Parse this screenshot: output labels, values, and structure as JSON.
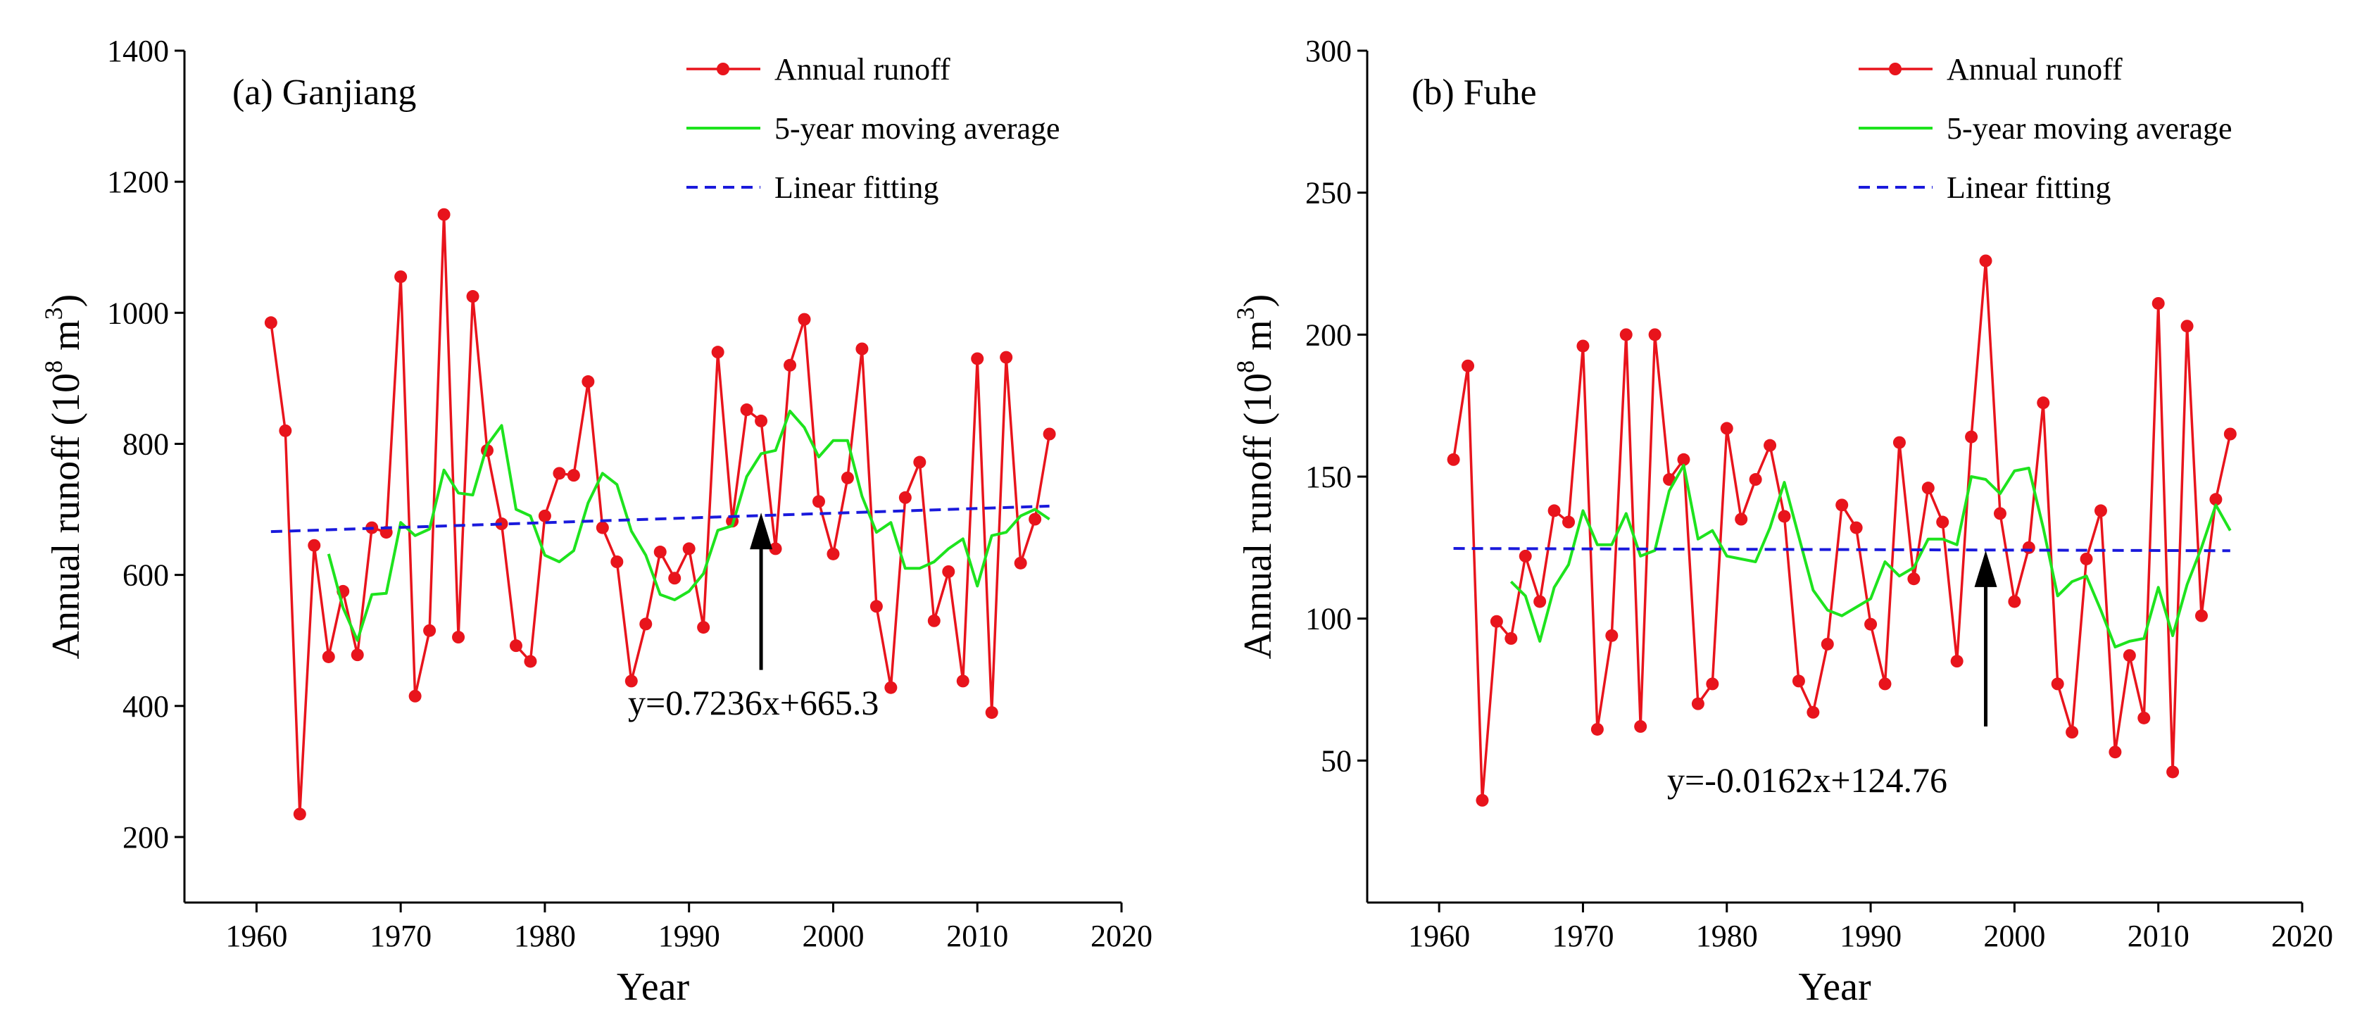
{
  "chart_data": [
    {
      "type": "line",
      "title": "(a) Ganjiang",
      "xlabel": "Year",
      "ylabel_main": "Annual runoff (10",
      "ylabel_sup": "8",
      "ylabel_unit": " m",
      "ylabel_sup2": "3",
      "ylabel_end": ")",
      "xlim": [
        1955,
        2020
      ],
      "ylim": [
        100,
        1400
      ],
      "xticks": [
        1960,
        1970,
        1980,
        1990,
        2000,
        2010,
        2020
      ],
      "yticks": [
        200,
        400,
        600,
        800,
        1000,
        1200,
        1400
      ],
      "legend_position": "top-right",
      "series": [
        {
          "name": "Annual runoff",
          "color": "#e8141c",
          "style": "line-markers",
          "x": [
            1961,
            1962,
            1963,
            1964,
            1965,
            1966,
            1967,
            1968,
            1969,
            1970,
            1971,
            1972,
            1973,
            1974,
            1975,
            1976,
            1977,
            1978,
            1979,
            1980,
            1981,
            1982,
            1983,
            1984,
            1985,
            1986,
            1987,
            1988,
            1989,
            1990,
            1991,
            1992,
            1993,
            1994,
            1995,
            1996,
            1997,
            1998,
            1999,
            2000,
            2001,
            2002,
            2003,
            2004,
            2005,
            2006,
            2007,
            2008,
            2009,
            2010,
            2011,
            2012,
            2013,
            2014,
            2015
          ],
          "values": [
            985,
            820,
            235,
            645,
            475,
            575,
            478,
            672,
            665,
            1055,
            415,
            515,
            1150,
            505,
            1025,
            790,
            678,
            492,
            468,
            690,
            755,
            752,
            895,
            672,
            620,
            438,
            525,
            635,
            595,
            640,
            520,
            940,
            682,
            852,
            835,
            640,
            920,
            990,
            712,
            632,
            748,
            945,
            552,
            428,
            718,
            772,
            530,
            605,
            438,
            930,
            390,
            932,
            618,
            685,
            815
          ]
        },
        {
          "name": "5-year moving average",
          "color": "#1ee31e",
          "style": "line",
          "x": [
            1965,
            1966,
            1967,
            1968,
            1969,
            1970,
            1971,
            1972,
            1973,
            1974,
            1975,
            1976,
            1977,
            1978,
            1979,
            1980,
            1981,
            1982,
            1983,
            1984,
            1985,
            1986,
            1987,
            1988,
            1989,
            1990,
            1991,
            1992,
            1993,
            1994,
            1995,
            1996,
            1997,
            1998,
            1999,
            2000,
            2001,
            2002,
            2003,
            2004,
            2005,
            2006,
            2007,
            2008,
            2009,
            2010,
            2011,
            2012,
            2013,
            2014,
            2015
          ],
          "values": [
            632,
            550,
            500,
            570,
            572,
            680,
            660,
            670,
            760,
            725,
            722,
            798,
            828,
            700,
            690,
            630,
            620,
            637,
            710,
            755,
            738,
            667,
            630,
            570,
            562,
            575,
            602,
            668,
            675,
            750,
            785,
            790,
            850,
            825,
            780,
            805,
            805,
            720,
            665,
            680,
            610,
            610,
            620,
            640,
            655,
            583,
            660,
            665,
            690,
            700,
            685
          ]
        },
        {
          "name": "Linear fitting",
          "color": "#1a1adc",
          "style": "dashed",
          "x": [
            1961,
            2015
          ],
          "values": [
            666,
            705
          ]
        }
      ],
      "annotation": {
        "text": "y=0.7236x+665.3",
        "arrow_to": [
          1995,
          695
        ],
        "arrow_from": [
          1995,
          455
        ]
      }
    },
    {
      "type": "line",
      "title": "(b) Fuhe",
      "xlabel": "Year",
      "ylabel_main": "Annual runoff (10",
      "ylabel_sup": "8",
      "ylabel_unit": " m",
      "ylabel_sup2": "3",
      "ylabel_end": ")",
      "xlim": [
        1955,
        2020
      ],
      "ylim": [
        0,
        300
      ],
      "xticks": [
        1960,
        1970,
        1980,
        1990,
        2000,
        2010,
        2020
      ],
      "yticks": [
        50,
        100,
        150,
        200,
        250,
        300
      ],
      "legend_position": "top-right",
      "series": [
        {
          "name": "Annual runoff",
          "color": "#e8141c",
          "style": "line-markers",
          "x": [
            1961,
            1962,
            1963,
            1964,
            1965,
            1966,
            1967,
            1968,
            1969,
            1970,
            1971,
            1972,
            1973,
            1974,
            1975,
            1976,
            1977,
            1978,
            1979,
            1980,
            1981,
            1982,
            1983,
            1984,
            1985,
            1986,
            1987,
            1988,
            1989,
            1990,
            1991,
            1992,
            1993,
            1994,
            1995,
            1996,
            1997,
            1998,
            1999,
            2000,
            2001,
            2002,
            2003,
            2004,
            2005,
            2006,
            2007,
            2008,
            2009,
            2010,
            2011,
            2012,
            2013,
            2014,
            2015
          ],
          "values": [
            156,
            189,
            36,
            99,
            93,
            122,
            106,
            138,
            134,
            196,
            61,
            94,
            200,
            62,
            200,
            149,
            156,
            70,
            77,
            167,
            135,
            149,
            161,
            136,
            78,
            67,
            91,
            140,
            132,
            98,
            77,
            162,
            114,
            146,
            134,
            85,
            164,
            226,
            137,
            106,
            125,
            176,
            77,
            60,
            121,
            138,
            53,
            87,
            65,
            211,
            46,
            203,
            101,
            142,
            165
          ]
        },
        {
          "name": "5-year moving average",
          "color": "#1ee31e",
          "style": "line",
          "x": [
            1965,
            1966,
            1967,
            1968,
            1969,
            1970,
            1971,
            1972,
            1973,
            1974,
            1975,
            1976,
            1977,
            1978,
            1979,
            1980,
            1981,
            1982,
            1983,
            1984,
            1985,
            1986,
            1987,
            1988,
            1989,
            1990,
            1991,
            1992,
            1993,
            1994,
            1995,
            1996,
            1997,
            1998,
            1999,
            2000,
            2001,
            2002,
            2003,
            2004,
            2005,
            2006,
            2007,
            2008,
            2009,
            2010,
            2011,
            2012,
            2013,
            2014,
            2015
          ],
          "values": [
            113,
            108,
            92,
            111,
            119,
            138,
            126,
            126,
            137,
            122,
            124,
            145,
            154,
            128,
            131,
            122,
            121,
            120,
            132,
            148,
            129,
            110,
            103,
            101,
            104,
            107,
            120,
            115,
            118,
            128,
            128,
            126,
            150,
            149,
            144,
            152,
            153,
            132,
            108,
            113,
            115,
            103,
            90,
            92,
            93,
            111,
            94,
            112,
            125,
            140,
            131
          ]
        },
        {
          "name": "Linear fitting",
          "color": "#1a1adc",
          "style": "dashed",
          "x": [
            1961,
            2015
          ],
          "values": [
            124.7,
            123.9
          ]
        }
      ],
      "annotation": {
        "text": "y=-0.0162x+124.76",
        "arrow_to": [
          1998,
          124
        ],
        "arrow_from": [
          1998,
          62
        ]
      }
    }
  ]
}
